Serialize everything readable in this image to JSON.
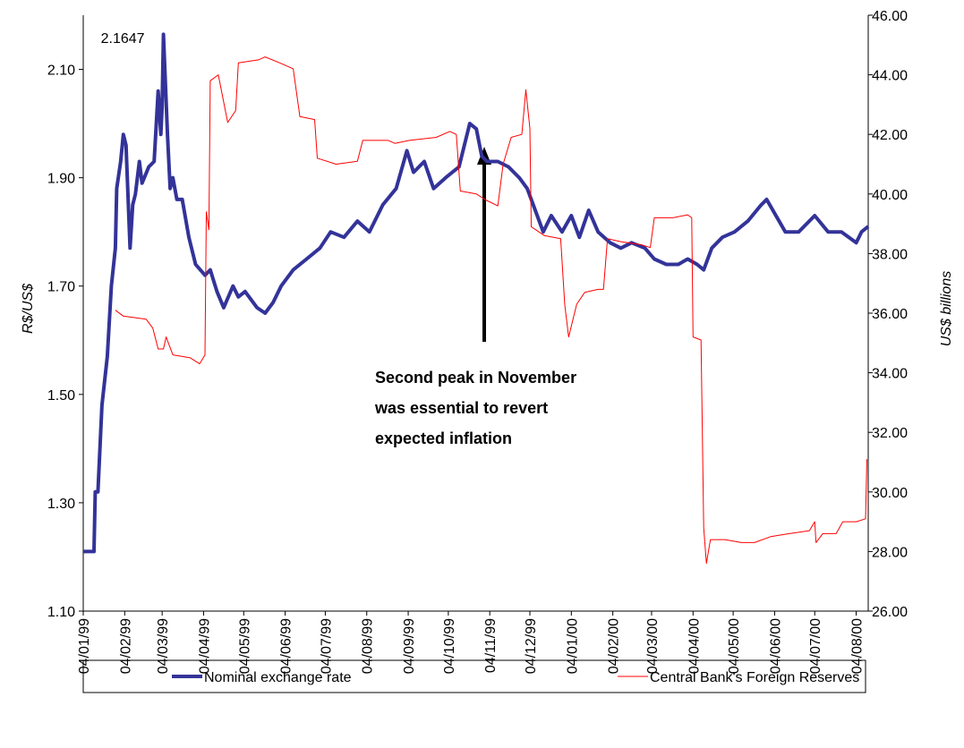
{
  "chart_data": {
    "type": "line",
    "ylabel": "R$/US$",
    "y2label": "US$ billions",
    "annotation": [
      "Second peak in November",
      "was essential to revert",
      "expected inflation"
    ],
    "xlim": [
      "04/01/99",
      "13/08/00"
    ],
    "xticks": [
      "04/01/99",
      "04/02/99",
      "04/03/99",
      "04/04/99",
      "04/05/99",
      "04/06/99",
      "04/07/99",
      "04/08/99",
      "04/09/99",
      "04/10/99",
      "04/11/99",
      "04/12/99",
      "04/01/00",
      "04/02/00",
      "04/03/00",
      "04/04/00",
      "04/05/00",
      "04/06/00",
      "04/07/00",
      "04/08/00"
    ],
    "ylim": [
      1.1,
      2.2
    ],
    "yticks": [
      {
        "value": 1.1,
        "label": "1.10"
      },
      {
        "value": 1.3,
        "label": "1.30"
      },
      {
        "value": 1.5,
        "label": "1.50"
      },
      {
        "value": 1.7,
        "label": "1.70"
      },
      {
        "value": 1.9,
        "label": "1.90"
      },
      {
        "value": 2.1,
        "label": "2.10"
      }
    ],
    "y2lim": [
      26,
      46
    ],
    "y2ticks": [
      {
        "value": 26,
        "label": "26.00"
      },
      {
        "value": 28,
        "label": "28.00"
      },
      {
        "value": 30,
        "label": "30.00"
      },
      {
        "value": 32,
        "label": "32.00"
      },
      {
        "value": 34,
        "label": "34.00"
      },
      {
        "value": 36,
        "label": "36.00"
      },
      {
        "value": 38,
        "label": "38.00"
      },
      {
        "value": 40,
        "label": "40.00"
      },
      {
        "value": 42,
        "label": "42.00"
      },
      {
        "value": 44,
        "label": "44.00"
      },
      {
        "value": 46,
        "label": "46.00"
      }
    ],
    "peak_label_index": 23,
    "series": [
      {
        "name": "Nominal exchange rate",
        "color": "#333399",
        "width": 4,
        "x": [
          "04/01/99",
          "12/01/99",
          "13/01/99",
          "15/01/99",
          "18/01/99",
          "22/01/99",
          "25/01/99",
          "28/01/99",
          "29/01/99",
          "01/02/99",
          "03/02/99",
          "05/02/99",
          "08/02/99",
          "10/02/99",
          "12/02/99",
          "15/02/99",
          "17/02/99",
          "22/02/99",
          "26/02/99",
          "01/03/99",
          "02/03/99",
          "03/03/99",
          "04/03/99",
          "05/03/99",
          "08/03/99",
          "10/03/99",
          "12/03/99",
          "15/03/99",
          "19/03/99",
          "24/03/99",
          "29/03/99",
          "05/04/99",
          "09/04/99",
          "14/04/99",
          "19/04/99",
          "26/04/99",
          "30/04/99",
          "05/05/99",
          "14/05/99",
          "20/05/99",
          "26/05/99",
          "01/06/99",
          "10/06/99",
          "20/06/99",
          "30/06/99",
          "08/07/99",
          "18/07/99",
          "28/07/99",
          "06/08/99",
          "16/08/99",
          "26/08/99",
          "03/09/99",
          "08/09/99",
          "16/09/99",
          "23/09/99",
          "02/10/99",
          "12/10/99",
          "20/10/99",
          "25/10/99",
          "29/10/99",
          "02/11/99",
          "10/11/99",
          "18/11/99",
          "26/11/99",
          "02/12/99",
          "08/12/99",
          "14/12/99",
          "20/12/99",
          "28/12/99",
          "04/01/00",
          "10/01/00",
          "17/01/00",
          "24/01/00",
          "02/02/00",
          "10/02/00",
          "18/02/00",
          "28/02/00",
          "06/03/00",
          "15/03/00",
          "24/03/00",
          "31/03/00",
          "07/04/00",
          "12/04/00",
          "18/04/00",
          "26/04/00",
          "05/05/00",
          "15/05/00",
          "25/05/00",
          "29/05/00",
          "05/06/00",
          "12/06/00",
          "22/06/00",
          "04/07/00",
          "14/07/00",
          "24/07/00",
          "04/08/00",
          "08/08/00",
          "13/08/00"
        ],
        "values": [
          1.21,
          1.21,
          1.32,
          1.32,
          1.48,
          1.57,
          1.7,
          1.77,
          1.88,
          1.93,
          1.98,
          1.96,
          1.77,
          1.85,
          1.87,
          1.93,
          1.89,
          1.92,
          1.93,
          2.06,
          2.02,
          1.98,
          2.03,
          2.1647,
          1.98,
          1.88,
          1.9,
          1.86,
          1.86,
          1.79,
          1.74,
          1.72,
          1.73,
          1.69,
          1.66,
          1.7,
          1.68,
          1.69,
          1.66,
          1.65,
          1.67,
          1.7,
          1.73,
          1.75,
          1.77,
          1.8,
          1.79,
          1.82,
          1.8,
          1.85,
          1.88,
          1.95,
          1.91,
          1.93,
          1.88,
          1.9,
          1.92,
          2.0,
          1.99,
          1.94,
          1.93,
          1.93,
          1.92,
          1.9,
          1.88,
          1.84,
          1.8,
          1.83,
          1.8,
          1.83,
          1.79,
          1.84,
          1.8,
          1.78,
          1.77,
          1.78,
          1.77,
          1.75,
          1.74,
          1.74,
          1.75,
          1.74,
          1.73,
          1.77,
          1.79,
          1.8,
          1.82,
          1.85,
          1.86,
          1.83,
          1.8,
          1.8,
          1.83,
          1.8,
          1.8,
          1.78,
          1.8,
          1.81
        ]
      },
      {
        "name": "Central Bank's Foreign Reserves",
        "color": "#ff0000",
        "width": 1,
        "axis": "y2",
        "x": [
          "28/01/99",
          "03/02/99",
          "20/02/99",
          "25/02/99",
          "01/03/99",
          "05/03/99",
          "07/03/99",
          "12/03/99",
          "25/03/99",
          "01/04/99",
          "05/04/99",
          "06/04/99",
          "08/04/99",
          "09/04/99",
          "15/04/99",
          "22/04/99",
          "28/04/99",
          "30/04/99",
          "15/05/99",
          "20/05/99",
          "31/05/99",
          "10/06/99",
          "15/06/99",
          "26/06/99",
          "28/06/99",
          "12/07/99",
          "28/07/99",
          "01/08/99",
          "20/08/99",
          "25/08/99",
          "05/09/99",
          "25/09/99",
          "05/10/99",
          "10/10/99",
          "13/10/99",
          "25/10/99",
          "01/11/99",
          "10/11/99",
          "14/11/99",
          "20/11/99",
          "28/11/99",
          "01/12/99",
          "04/12/99",
          "05/12/99",
          "15/12/99",
          "27/12/99",
          "30/12/99",
          "02/01/00",
          "08/01/00",
          "14/01/00",
          "24/01/00",
          "28/01/00",
          "31/01/00",
          "10/02/00",
          "25/02/00",
          "03/03/00",
          "06/03/00",
          "20/03/00",
          "31/03/00",
          "03/04/00",
          "04/04/00",
          "10/04/00",
          "12/04/00",
          "14/04/00",
          "17/04/00",
          "28/04/00",
          "10/05/00",
          "20/05/00",
          "01/06/00",
          "15/06/00",
          "30/06/00",
          "04/07/00",
          "05/07/00",
          "10/07/00",
          "20/07/00",
          "25/07/00",
          "04/08/00",
          "11/08/00",
          "12/08/00"
        ],
        "values": [
          36.1,
          35.9,
          35.8,
          35.5,
          34.8,
          34.8,
          35.2,
          34.6,
          34.5,
          34.3,
          34.6,
          39.4,
          38.8,
          43.8,
          44.0,
          42.4,
          42.8,
          44.4,
          44.5,
          44.6,
          44.4,
          44.2,
          42.6,
          42.5,
          41.2,
          41.0,
          41.1,
          41.8,
          41.8,
          41.7,
          41.8,
          41.9,
          42.1,
          42.0,
          40.1,
          40.0,
          39.8,
          39.6,
          41.0,
          41.9,
          42.0,
          43.5,
          42.2,
          38.9,
          38.6,
          38.5,
          36.3,
          35.2,
          36.3,
          36.7,
          36.8,
          36.8,
          38.5,
          38.4,
          38.3,
          38.2,
          39.2,
          39.2,
          39.3,
          39.2,
          35.2,
          35.1,
          28.8,
          27.6,
          28.4,
          28.4,
          28.3,
          28.3,
          28.5,
          28.6,
          28.7,
          29.0,
          28.3,
          28.6,
          28.6,
          29.0,
          29.0,
          29.1,
          31.1
        ]
      }
    ]
  }
}
